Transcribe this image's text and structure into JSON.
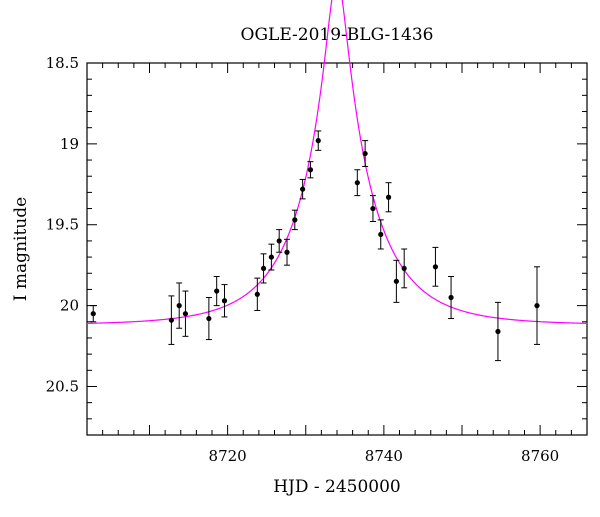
{
  "chart_data": {
    "type": "scatter",
    "title": "OGLE-2019-BLG-1436",
    "xlabel": "HJD - 2450000",
    "ylabel": "I magnitude",
    "xlim": [
      8702,
      8766
    ],
    "ylim": [
      18.5,
      20.8
    ],
    "y_inverted": true,
    "grid": false,
    "x_ticks": [
      8720,
      8740,
      8760
    ],
    "x_tick_labels": [
      "8720",
      "8740",
      "8760"
    ],
    "y_ticks": [
      18.5,
      19,
      19.5,
      20,
      20.5
    ],
    "y_tick_labels": [
      "18.5",
      "19",
      "19.5",
      "20",
      "20.5"
    ],
    "colors": {
      "points": "#000000",
      "model": "#ff00ff",
      "axes": "#000000"
    },
    "series": [
      {
        "kind": "points-with-errorbars",
        "points": [
          {
            "x": 8702.8,
            "y": 20.05,
            "err": 0.05
          },
          {
            "x": 8712.8,
            "y": 20.09,
            "err": 0.15
          },
          {
            "x": 8713.8,
            "y": 20.0,
            "err": 0.14
          },
          {
            "x": 8714.6,
            "y": 20.05,
            "err": 0.14
          },
          {
            "x": 8717.6,
            "y": 20.08,
            "err": 0.13
          },
          {
            "x": 8718.6,
            "y": 19.91,
            "err": 0.09
          },
          {
            "x": 8719.6,
            "y": 19.97,
            "err": 0.1
          },
          {
            "x": 8723.8,
            "y": 19.93,
            "err": 0.1
          },
          {
            "x": 8724.6,
            "y": 19.77,
            "err": 0.09
          },
          {
            "x": 8725.6,
            "y": 19.7,
            "err": 0.08
          },
          {
            "x": 8726.6,
            "y": 19.6,
            "err": 0.07
          },
          {
            "x": 8727.6,
            "y": 19.67,
            "err": 0.08
          },
          {
            "x": 8728.6,
            "y": 19.47,
            "err": 0.06
          },
          {
            "x": 8729.6,
            "y": 19.28,
            "err": 0.06
          },
          {
            "x": 8730.6,
            "y": 19.16,
            "err": 0.05
          },
          {
            "x": 8731.6,
            "y": 18.98,
            "err": 0.06
          },
          {
            "x": 8736.6,
            "y": 19.24,
            "err": 0.08
          },
          {
            "x": 8737.6,
            "y": 19.06,
            "err": 0.08
          },
          {
            "x": 8738.6,
            "y": 19.4,
            "err": 0.08
          },
          {
            "x": 8739.6,
            "y": 19.56,
            "err": 0.09
          },
          {
            "x": 8740.6,
            "y": 19.33,
            "err": 0.09
          },
          {
            "x": 8741.6,
            "y": 19.85,
            "err": 0.13
          },
          {
            "x": 8742.6,
            "y": 19.77,
            "err": 0.12
          },
          {
            "x": 8746.6,
            "y": 19.76,
            "err": 0.12
          },
          {
            "x": 8748.6,
            "y": 19.95,
            "err": 0.13
          },
          {
            "x": 8754.6,
            "y": 20.16,
            "err": 0.18
          },
          {
            "x": 8759.6,
            "y": 20.0,
            "err": 0.24
          }
        ]
      },
      {
        "kind": "model-curve",
        "model": {
          "t0": 8734.0,
          "u0": 0.14,
          "tE": 9.0,
          "m_base": 20.12
        }
      }
    ]
  }
}
